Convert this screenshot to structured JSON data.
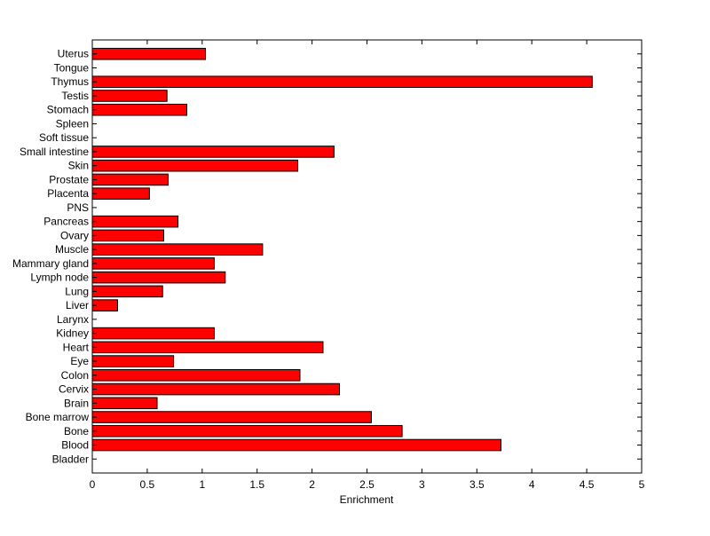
{
  "chart_data": {
    "type": "bar",
    "orientation": "horizontal",
    "title": "",
    "xlabel": "Enrichment",
    "ylabel": "",
    "xlim": [
      0,
      5
    ],
    "xticks": [
      "0",
      "0.5",
      "1",
      "1.5",
      "2",
      "2.5",
      "3",
      "3.5",
      "4",
      "4.5",
      "5"
    ],
    "grid": false,
    "bar_color": "#ff0000",
    "categories": [
      "Bladder",
      "Blood",
      "Bone",
      "Bone marrow",
      "Brain",
      "Cervix",
      "Colon",
      "Eye",
      "Heart",
      "Kidney",
      "Larynx",
      "Liver",
      "Lung",
      "Lymph node",
      "Mammary gland",
      "Muscle",
      "Ovary",
      "Pancreas",
      "PNS",
      "Placenta",
      "Prostate",
      "Skin",
      "Small intestine",
      "Soft tissue",
      "Spleen",
      "Stomach",
      "Testis",
      "Thymus",
      "Tongue",
      "Uterus"
    ],
    "values": [
      0,
      3.72,
      2.82,
      2.54,
      0.59,
      2.25,
      1.89,
      0.74,
      2.1,
      1.11,
      0,
      0.23,
      0.64,
      1.21,
      1.11,
      1.55,
      0.65,
      0.78,
      0,
      0.52,
      0.69,
      1.87,
      2.2,
      0,
      0,
      0.86,
      0.68,
      4.55,
      0,
      1.03
    ]
  }
}
